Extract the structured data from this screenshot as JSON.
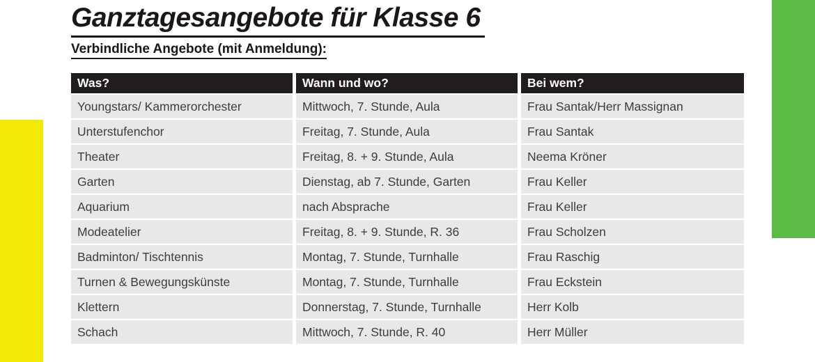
{
  "page": {
    "title": "Ganztagesangebote für Klasse 6",
    "subtitle": "Verbindliche Angebote (mit Anmeldung):"
  },
  "table": {
    "headers": [
      "Was?",
      "Wann und wo?",
      "Bei wem?"
    ],
    "rows": [
      [
        "Youngstars/ Kammerorchester",
        "Mittwoch, 7. Stunde, Aula",
        "Frau Santak/Herr Massignan"
      ],
      [
        "Unterstufenchor",
        "Freitag, 7. Stunde, Aula",
        "Frau Santak"
      ],
      [
        "Theater",
        "Freitag, 8. + 9. Stunde, Aula",
        "Neema Kröner"
      ],
      [
        "Garten",
        "Dienstag, ab 7. Stunde, Garten",
        "Frau Keller"
      ],
      [
        "Aquarium",
        "nach Absprache",
        "Frau Keller"
      ],
      [
        "Modeatelier",
        "Freitag, 8. + 9. Stunde, R. 36",
        "Frau Scholzen"
      ],
      [
        "Badminton/ Tischtennis",
        "Montag, 7. Stunde, Turnhalle",
        "Frau Raschig"
      ],
      [
        "Turnen & Bewegungskünste",
        "Montag, 7. Stunde, Turnhalle",
        "Frau Eckstein"
      ],
      [
        "Klettern",
        "Donnerstag, 7. Stunde, Turnhalle",
        "Herr Kolb"
      ],
      [
        "Schach",
        "Mittwoch, 7. Stunde, R. 40",
        "Herr Müller"
      ]
    ]
  },
  "decor": {
    "left_bar_color": "#f3e907",
    "right_bar_color": "#5cbb47",
    "header_bg_color": "#211d1e",
    "row_bg_color": "#e8e8e8"
  }
}
